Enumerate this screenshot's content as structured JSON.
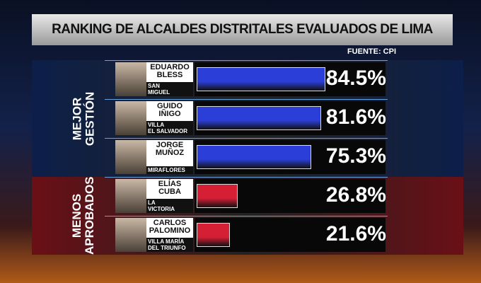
{
  "chart_data": {
    "type": "bar",
    "title": "RANKING DE ALCALDES DISTRITALES EVALUADOS DE LIMA",
    "source": "FUENTE: CPI",
    "groups": [
      {
        "name": "MEJOR\nGESTIÓN",
        "color": "#2b3fd8",
        "band": "#0c1f4a",
        "rows": [
          {
            "name": "EDUARDO\nBLESS",
            "district": "SAN\nMIGUEL",
            "value": 84.5,
            "value_label": "84.5%"
          },
          {
            "name": "GUIDO\nIÑIGO",
            "district": "VILLA\nEL SALVADOR",
            "value": 81.6,
            "value_label": "81.6%"
          },
          {
            "name": "JORGE\nMUÑOZ",
            "district": "MIRAFLORES",
            "value": 75.3,
            "value_label": "75.3%"
          }
        ]
      },
      {
        "name": "MENOS\nAPROBADOS",
        "color": "#d41f35",
        "band": "#6a0f16",
        "rows": [
          {
            "name": "ELÍAS\nCUBA",
            "district": "LA\nVICTORIA",
            "value": 26.8,
            "value_label": "26.8%"
          },
          {
            "name": "CARLOS\nPALOMINO",
            "district": "VILLA MARÍA\nDEL TRIUNFO",
            "value": 21.6,
            "value_label": "21.6%"
          }
        ]
      }
    ]
  }
}
